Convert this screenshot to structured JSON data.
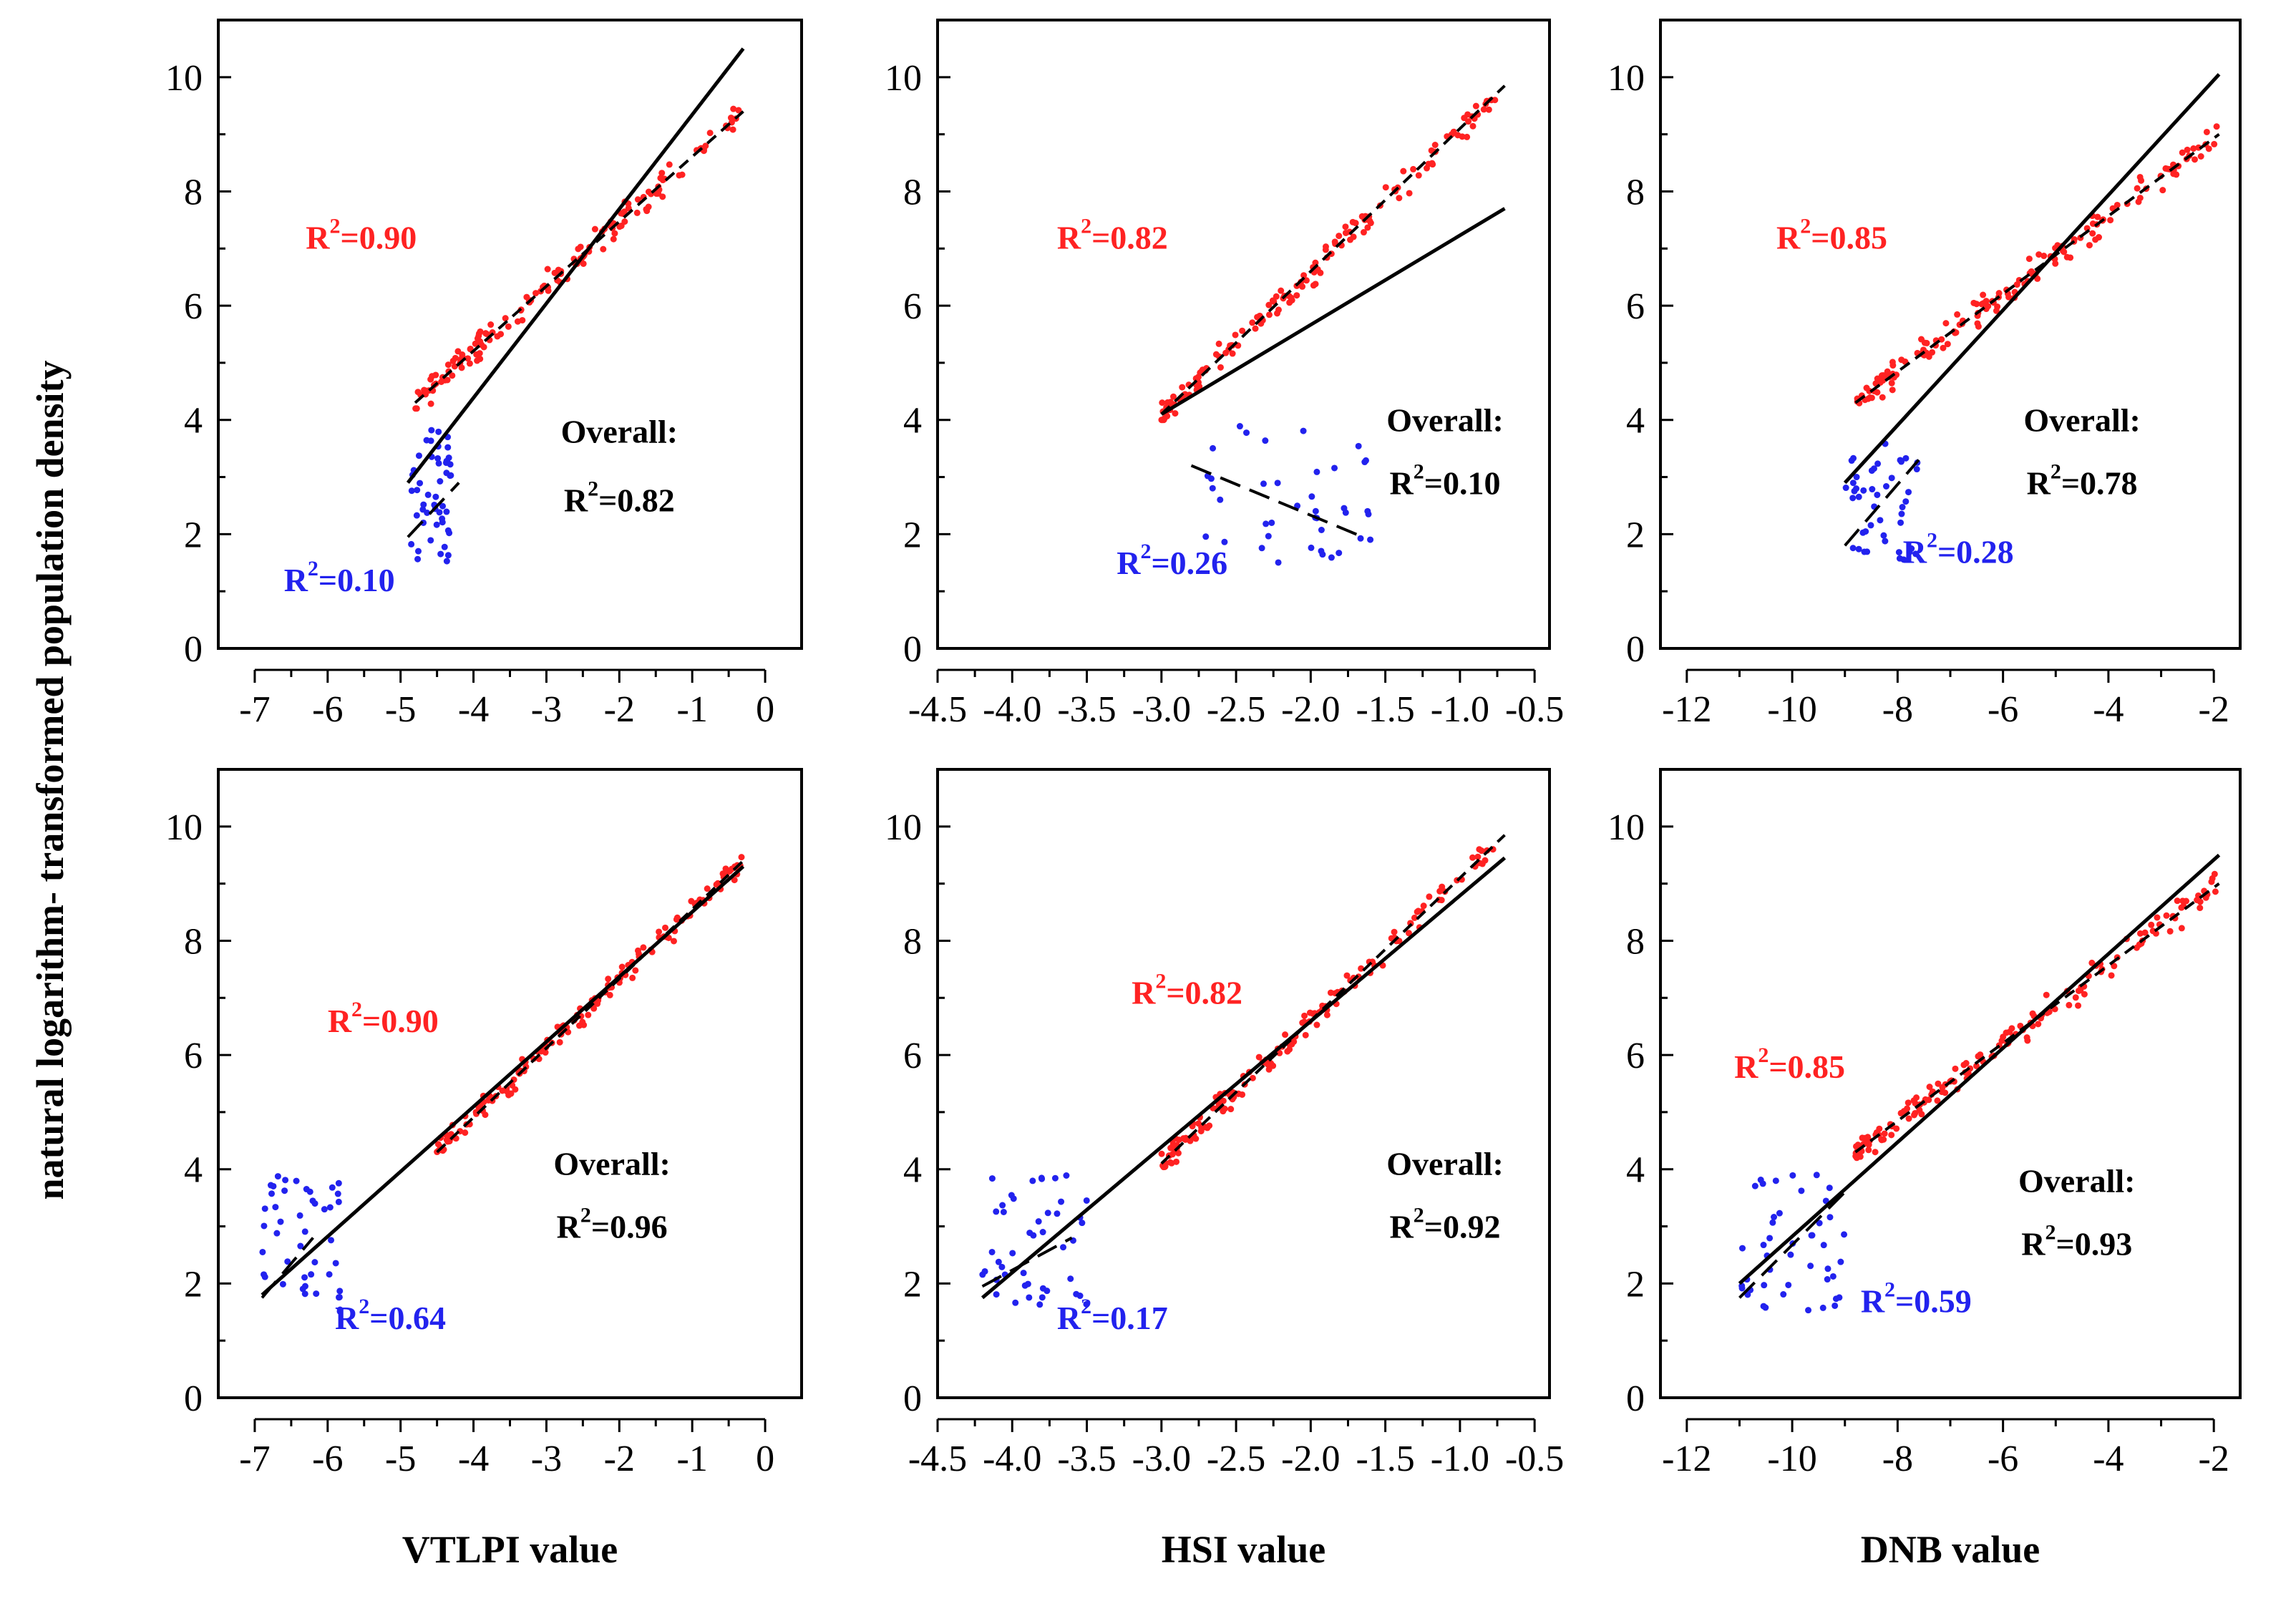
{
  "figure": {
    "ylabel": "natural logarithm- transformed population density",
    "colors": {
      "urban": "#ff2222",
      "rural": "#2222ee",
      "line": "#000000"
    }
  },
  "chart_data": [
    {
      "id": "vtlpi-top",
      "type": "scatter",
      "xlabel": "",
      "ylabel": "",
      "xlim": [
        -7.5,
        0.5
      ],
      "ylim": [
        0,
        11
      ],
      "xticks": [
        -7,
        -6,
        -5,
        -4,
        -3,
        -2,
        -1,
        0
      ],
      "xtick_labels": [
        "-7",
        "-6",
        "-5",
        "-4",
        "-3",
        "-2",
        "-1",
        "0"
      ],
      "yticks": [
        0,
        2,
        4,
        6,
        8,
        10
      ],
      "ytick_labels": [
        "0",
        "2",
        "4",
        "6",
        "8",
        "10"
      ],
      "urban": {
        "x": [
          -4.8,
          -0.3
        ],
        "y": [
          4.3,
          9.5
        ],
        "n": 150,
        "noise": 0.35
      },
      "rural": {
        "x": [
          -4.9,
          -4.3
        ],
        "y": [
          1.5,
          3.9
        ],
        "n": 50
      },
      "lines": [
        {
          "style": "solid",
          "x": [
            -4.9,
            -0.3
          ],
          "y": [
            2.9,
            10.5
          ]
        },
        {
          "style": "dashed",
          "x": [
            -4.8,
            -0.3
          ],
          "y": [
            4.3,
            9.4
          ]
        },
        {
          "style": "longdash",
          "x": [
            -4.9,
            -4.2
          ],
          "y": [
            1.95,
            2.9
          ]
        }
      ],
      "annotations": {
        "urban_r2": {
          "label": "R",
          "sup": "2",
          "value": "=0.90",
          "pos": [
            -6.3,
            7.0
          ]
        },
        "rural_r2": {
          "label": "R",
          "sup": "2",
          "value": "=0.10",
          "pos": [
            -6.6,
            1.0
          ]
        },
        "overall_title": {
          "text": "Overall:",
          "pos": [
            -2.0,
            3.6
          ]
        },
        "overall_r2": {
          "label": "R",
          "sup": "2",
          "value": "=0.82",
          "pos": [
            -2.0,
            2.4
          ]
        }
      }
    },
    {
      "id": "hsi-top",
      "type": "scatter",
      "xlabel": "",
      "ylabel": "",
      "xlim": [
        -4.5,
        -0.4
      ],
      "ylim": [
        0,
        11
      ],
      "xticks": [
        -4.5,
        -4.0,
        -3.5,
        -3.0,
        -2.5,
        -2.0,
        -1.5,
        -1.0,
        -0.5
      ],
      "xtick_labels": [
        "-4.5",
        "-4.0",
        "-3.5",
        "-3.0",
        "-2.5",
        "-2.0",
        "-1.5",
        "-1.0",
        "-0.5"
      ],
      "yticks": [
        0,
        2,
        4,
        6,
        8,
        10
      ],
      "ytick_labels": [
        "0",
        "2",
        "4",
        "6",
        "8",
        "10"
      ],
      "urban": {
        "x": [
          -3.0,
          -0.7
        ],
        "y": [
          4.1,
          9.5
        ],
        "n": 150,
        "noise": 0.35
      },
      "rural": {
        "x": [
          -2.8,
          -1.6
        ],
        "y": [
          1.5,
          3.9
        ],
        "n": 40
      },
      "lines": [
        {
          "style": "solid",
          "x": [
            -3.0,
            -0.7
          ],
          "y": [
            4.1,
            7.7
          ]
        },
        {
          "style": "dashed",
          "x": [
            -3.0,
            -0.7
          ],
          "y": [
            4.1,
            9.85
          ]
        },
        {
          "style": "longdash",
          "x": [
            -2.8,
            -1.65
          ],
          "y": [
            3.2,
            1.95
          ]
        }
      ],
      "annotations": {
        "urban_r2": {
          "label": "R",
          "sup": "2",
          "value": "=0.82",
          "pos": [
            -3.7,
            7.0
          ]
        },
        "rural_r2": {
          "label": "R",
          "sup": "2",
          "value": "=0.26",
          "pos": [
            -3.3,
            1.3
          ]
        },
        "overall_title": {
          "text": "Overall:",
          "pos": [
            -1.1,
            3.8
          ]
        },
        "overall_r2": {
          "label": "R",
          "sup": "2",
          "value": "=0.10",
          "pos": [
            -1.1,
            2.7
          ]
        }
      }
    },
    {
      "id": "dnb-top",
      "type": "scatter",
      "xlabel": "",
      "ylabel": "",
      "xlim": [
        -12.5,
        -1.5
      ],
      "ylim": [
        0,
        11
      ],
      "xticks": [
        -12,
        -10,
        -8,
        -6,
        -4,
        -2
      ],
      "xtick_labels": [
        "-12",
        "-10",
        "-8",
        "-6",
        "-4",
        "-2"
      ],
      "yticks": [
        0,
        2,
        4,
        6,
        8,
        10
      ],
      "ytick_labels": [
        "0",
        "2",
        "4",
        "6",
        "8",
        "10"
      ],
      "urban": {
        "x": [
          -8.8,
          -1.9
        ],
        "y": [
          4.3,
          9.2
        ],
        "n": 150,
        "noise": 0.35
      },
      "rural": {
        "x": [
          -9.0,
          -7.6
        ],
        "y": [
          1.5,
          3.6
        ],
        "n": 45
      },
      "lines": [
        {
          "style": "solid",
          "x": [
            -9.0,
            -1.9
          ],
          "y": [
            2.9,
            10.05
          ]
        },
        {
          "style": "dashed",
          "x": [
            -8.8,
            -1.9
          ],
          "y": [
            4.3,
            9.0
          ]
        },
        {
          "style": "longdash",
          "x": [
            -9.0,
            -7.6
          ],
          "y": [
            1.8,
            3.3
          ]
        }
      ],
      "annotations": {
        "urban_r2": {
          "label": "R",
          "sup": "2",
          "value": "=0.85",
          "pos": [
            -10.3,
            7.0
          ]
        },
        "rural_r2": {
          "label": "R",
          "sup": "2",
          "value": "=0.28",
          "pos": [
            -7.9,
            1.5
          ]
        },
        "overall_title": {
          "text": "Overall:",
          "pos": [
            -4.5,
            3.8
          ]
        },
        "overall_r2": {
          "label": "R",
          "sup": "2",
          "value": "=0.78",
          "pos": [
            -4.5,
            2.7
          ]
        }
      }
    },
    {
      "id": "vtlpi-bottom",
      "type": "scatter",
      "xlabel": "VTLPI value",
      "ylabel": "",
      "xlim": [
        -7.5,
        0.5
      ],
      "ylim": [
        0,
        11
      ],
      "xticks": [
        -7,
        -6,
        -5,
        -4,
        -3,
        -2,
        -1,
        0
      ],
      "xtick_labels": [
        "-7",
        "-6",
        "-5",
        "-4",
        "-3",
        "-2",
        "-1",
        "0"
      ],
      "yticks": [
        0,
        2,
        4,
        6,
        8,
        10
      ],
      "ytick_labels": [
        "0",
        "2",
        "4",
        "6",
        "8",
        "10"
      ],
      "urban": {
        "x": [
          -4.5,
          -0.3
        ],
        "y": [
          4.3,
          9.4
        ],
        "n": 150,
        "noise": 0.3
      },
      "rural": {
        "x": [
          -6.9,
          -5.8
        ],
        "y": [
          1.5,
          3.9
        ],
        "n": 45
      },
      "lines": [
        {
          "style": "solid",
          "x": [
            -6.9,
            -0.3
          ],
          "y": [
            1.8,
            9.3
          ]
        },
        {
          "style": "dashed",
          "x": [
            -4.5,
            -0.3
          ],
          "y": [
            4.3,
            9.4
          ]
        },
        {
          "style": "longdash",
          "x": [
            -6.9,
            -6.2
          ],
          "y": [
            1.75,
            2.8
          ]
        }
      ],
      "annotations": {
        "urban_r2": {
          "label": "R",
          "sup": "2",
          "value": "=0.90",
          "pos": [
            -6.0,
            6.4
          ]
        },
        "rural_r2": {
          "label": "R",
          "sup": "2",
          "value": "=0.64",
          "pos": [
            -5.9,
            1.2
          ]
        },
        "overall_title": {
          "text": "Overall:",
          "pos": [
            -2.1,
            3.9
          ]
        },
        "overall_r2": {
          "label": "R",
          "sup": "2",
          "value": "=0.96",
          "pos": [
            -2.1,
            2.8
          ]
        }
      }
    },
    {
      "id": "hsi-bottom",
      "type": "scatter",
      "xlabel": "HSI value",
      "ylabel": "",
      "xlim": [
        -4.5,
        -0.4
      ],
      "ylim": [
        0,
        11
      ],
      "xticks": [
        -4.5,
        -4.0,
        -3.5,
        -3.0,
        -2.5,
        -2.0,
        -1.5,
        -1.0,
        -0.5
      ],
      "xtick_labels": [
        "-4.5",
        "-4.0",
        "-3.5",
        "-3.0",
        "-2.5",
        "-2.0",
        "-1.5",
        "-1.0",
        "-0.5"
      ],
      "yticks": [
        0,
        2,
        4,
        6,
        8,
        10
      ],
      "ytick_labels": [
        "0",
        "2",
        "4",
        "6",
        "8",
        "10"
      ],
      "urban": {
        "x": [
          -3.0,
          -0.7
        ],
        "y": [
          4.1,
          9.5
        ],
        "n": 150,
        "noise": 0.35
      },
      "rural": {
        "x": [
          -4.2,
          -3.5
        ],
        "y": [
          1.5,
          3.9
        ],
        "n": 45
      },
      "lines": [
        {
          "style": "solid",
          "x": [
            -4.2,
            -0.7
          ],
          "y": [
            1.75,
            9.45
          ]
        },
        {
          "style": "dashed",
          "x": [
            -3.0,
            -0.7
          ],
          "y": [
            4.1,
            9.85
          ]
        },
        {
          "style": "longdash",
          "x": [
            -4.2,
            -3.6
          ],
          "y": [
            1.95,
            2.8
          ]
        }
      ],
      "annotations": {
        "urban_r2": {
          "label": "R",
          "sup": "2",
          "value": "=0.82",
          "pos": [
            -3.2,
            6.9
          ]
        },
        "rural_r2": {
          "label": "R",
          "sup": "2",
          "value": "=0.17",
          "pos": [
            -3.7,
            1.2
          ]
        },
        "overall_title": {
          "text": "Overall:",
          "pos": [
            -1.1,
            3.9
          ]
        },
        "overall_r2": {
          "label": "R",
          "sup": "2",
          "value": "=0.92",
          "pos": [
            -1.1,
            2.8
          ]
        }
      }
    },
    {
      "id": "dnb-bottom",
      "type": "scatter",
      "xlabel": "DNB value",
      "ylabel": "",
      "xlim": [
        -12.5,
        -1.5
      ],
      "ylim": [
        0,
        11
      ],
      "xticks": [
        -12,
        -10,
        -8,
        -6,
        -4,
        -2
      ],
      "xtick_labels": [
        "-12",
        "-10",
        "-8",
        "-6",
        "-4",
        "-2"
      ],
      "yticks": [
        0,
        2,
        4,
        6,
        8,
        10
      ],
      "ytick_labels": [
        "0",
        "2",
        "4",
        "6",
        "8",
        "10"
      ],
      "urban": {
        "x": [
          -8.8,
          -1.9
        ],
        "y": [
          4.3,
          9.2
        ],
        "n": 150,
        "noise": 0.35
      },
      "rural": {
        "x": [
          -11.0,
          -9.0
        ],
        "y": [
          1.5,
          3.9
        ],
        "n": 45
      },
      "lines": [
        {
          "style": "solid",
          "x": [
            -11.0,
            -1.9
          ],
          "y": [
            2.0,
            9.5
          ]
        },
        {
          "style": "dashed",
          "x": [
            -8.8,
            -1.9
          ],
          "y": [
            4.3,
            9.0
          ]
        },
        {
          "style": "longdash",
          "x": [
            -11.0,
            -9.0
          ],
          "y": [
            1.75,
            3.6
          ]
        }
      ],
      "annotations": {
        "urban_r2": {
          "label": "R",
          "sup": "2",
          "value": "=0.85",
          "pos": [
            -11.1,
            5.6
          ]
        },
        "rural_r2": {
          "label": "R",
          "sup": "2",
          "value": "=0.59",
          "pos": [
            -8.7,
            1.5
          ]
        },
        "overall_title": {
          "text": "Overall:",
          "pos": [
            -4.6,
            3.6
          ]
        },
        "overall_r2": {
          "label": "R",
          "sup": "2",
          "value": "=0.93",
          "pos": [
            -4.6,
            2.5
          ]
        }
      }
    }
  ]
}
